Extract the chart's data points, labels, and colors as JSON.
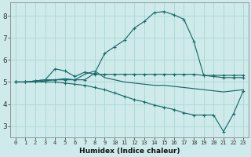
{
  "xlabel": "Humidex (Indice chaleur)",
  "bg_color": "#ceeaea",
  "grid_color": "#b0d8d8",
  "line_color": "#1a6b6b",
  "xlim": [
    -0.5,
    23.5
  ],
  "ylim": [
    2.5,
    8.6
  ],
  "xticks": [
    0,
    1,
    2,
    3,
    4,
    5,
    6,
    7,
    8,
    9,
    10,
    11,
    12,
    13,
    14,
    15,
    16,
    17,
    18,
    19,
    20,
    21,
    22,
    23
  ],
  "yticks": [
    3,
    4,
    5,
    6,
    7,
    8
  ],
  "lines": [
    {
      "x": [
        0,
        1,
        2,
        3,
        4,
        5,
        6,
        7,
        8,
        9,
        10,
        11,
        12,
        13,
        14,
        15,
        16,
        17,
        18,
        19,
        20,
        21,
        22,
        23
      ],
      "y": [
        5.0,
        5.0,
        5.05,
        5.1,
        5.1,
        5.1,
        5.1,
        5.1,
        5.4,
        6.3,
        6.6,
        6.9,
        7.45,
        7.75,
        8.15,
        8.2,
        8.05,
        7.85,
        6.85,
        5.3,
        5.3,
        5.3,
        5.3,
        5.3
      ],
      "markers": true
    },
    {
      "x": [
        0,
        1,
        2,
        3,
        4,
        5,
        6,
        7,
        8,
        9,
        10,
        11,
        12,
        13,
        14,
        15,
        16,
        17,
        18,
        19,
        20,
        21,
        22,
        23
      ],
      "y": [
        5.0,
        5.0,
        5.05,
        5.1,
        5.6,
        5.5,
        5.25,
        5.45,
        5.35,
        5.35,
        5.35,
        5.35,
        5.35,
        5.35,
        5.35,
        5.35,
        5.35,
        5.35,
        5.35,
        5.3,
        5.25,
        5.2,
        5.2,
        5.2
      ],
      "markers": true
    },
    {
      "x": [
        0,
        1,
        2,
        3,
        4,
        5,
        6,
        7,
        8,
        9,
        10,
        11,
        12,
        13,
        14,
        15,
        16,
        17,
        18,
        19,
        20,
        21,
        22,
        23
      ],
      "y": [
        5.0,
        5.0,
        5.0,
        5.05,
        5.1,
        5.15,
        5.1,
        5.35,
        5.5,
        5.2,
        5.1,
        5.0,
        4.95,
        4.9,
        4.85,
        4.85,
        4.8,
        4.75,
        4.7,
        4.65,
        4.6,
        4.55,
        4.6,
        4.65
      ],
      "markers": false
    },
    {
      "x": [
        0,
        1,
        2,
        3,
        4,
        5,
        6,
        7,
        8,
        9,
        10,
        11,
        12,
        13,
        14,
        15,
        16,
        17,
        18,
        19,
        20,
        21,
        22,
        23
      ],
      "y": [
        5.0,
        5.0,
        5.0,
        5.0,
        5.0,
        4.95,
        4.9,
        4.85,
        4.75,
        4.65,
        4.5,
        4.35,
        4.2,
        4.1,
        3.95,
        3.85,
        3.75,
        3.6,
        3.5,
        3.5,
        3.5,
        2.75,
        3.55,
        4.6
      ],
      "markers": true
    }
  ]
}
